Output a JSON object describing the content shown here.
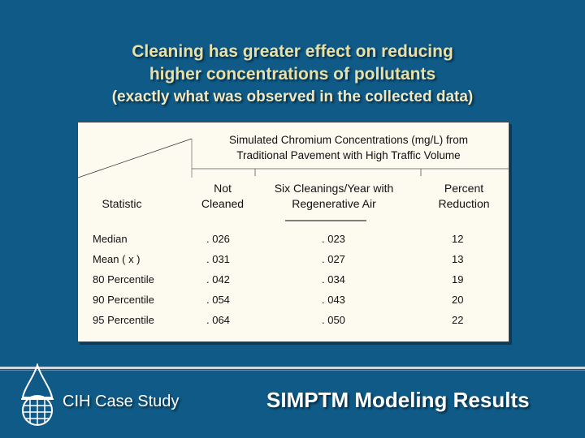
{
  "title": {
    "line1": "Cleaning has greater effect on reducing",
    "line2": "higher concentrations of pollutants",
    "line3": "(exactly what was observed in the collected data)"
  },
  "table": {
    "caption_line1": "Simulated Chromium Concentrations (mg/L) from",
    "caption_line2": "Traditional Pavement with High Traffic Volume",
    "headers": {
      "statistic": "Statistic",
      "not_cleaned_line1": "Not",
      "not_cleaned_line2": "Cleaned",
      "six_cleanings_line1": "Six Cleanings/Year with",
      "six_cleanings_line2": "Regenerative Air",
      "percent_line1": "Percent",
      "percent_line2": "Reduction"
    },
    "rows": [
      {
        "statistic": "Median",
        "not_cleaned": ". 026",
        "six_cleanings": ". 023",
        "percent_reduction": "12"
      },
      {
        "statistic": "Mean ( x )",
        "not_cleaned": ". 031",
        "six_cleanings": ". 027",
        "percent_reduction": "13"
      },
      {
        "statistic": "80 Percentile",
        "not_cleaned": ". 042",
        "six_cleanings": ". 034",
        "percent_reduction": "19"
      },
      {
        "statistic": "90 Percentile",
        "not_cleaned": ". 054",
        "six_cleanings": ". 043",
        "percent_reduction": "20"
      },
      {
        "statistic": "95 Percentile",
        "not_cleaned": ". 064",
        "six_cleanings": ". 050",
        "percent_reduction": "22"
      }
    ]
  },
  "footer": {
    "left": "CIH Case Study",
    "right": "SIMPTM Modeling Results"
  },
  "icons": {
    "logo": "water-drop-globe-icon"
  },
  "colors": {
    "background": "#0f5a86",
    "title": "#e8e0a8",
    "table_background": "#fdfaf0"
  }
}
